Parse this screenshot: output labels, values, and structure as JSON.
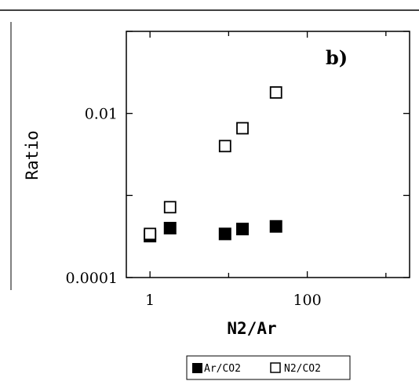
{
  "chart_data": {
    "type": "scatter",
    "annotation": "b)",
    "xlabel": "N2/Ar",
    "ylabel": "Ratio",
    "x_scale": "log",
    "y_scale": "log",
    "xlim": [
      0.5,
      2000
    ],
    "ylim": [
      0.0001,
      0.1
    ],
    "x_ticks": [
      {
        "value": 1,
        "label": "1"
      },
      {
        "value": 100,
        "label": "100"
      }
    ],
    "y_ticks": [
      {
        "value": 0.0001,
        "label": "0.0001"
      },
      {
        "value": 0.01,
        "label": "0.01"
      }
    ],
    "grid": false,
    "legend_position": "bottom",
    "series": [
      {
        "name": "Ar/CO2",
        "marker": "filled-square",
        "color": "#000000",
        "points": [
          {
            "x": 1.0,
            "y": 0.00032
          },
          {
            "x": 1.8,
            "y": 0.0004
          },
          {
            "x": 9.0,
            "y": 0.00034
          },
          {
            "x": 15.0,
            "y": 0.00039
          },
          {
            "x": 40.0,
            "y": 0.00042
          }
        ]
      },
      {
        "name": "N2/CO2",
        "marker": "open-square",
        "color": "#000000",
        "points": [
          {
            "x": 1.0,
            "y": 0.00034
          },
          {
            "x": 1.8,
            "y": 0.00072
          },
          {
            "x": 9.0,
            "y": 0.004
          },
          {
            "x": 15.0,
            "y": 0.0066
          },
          {
            "x": 40.0,
            "y": 0.018
          }
        ]
      }
    ]
  }
}
